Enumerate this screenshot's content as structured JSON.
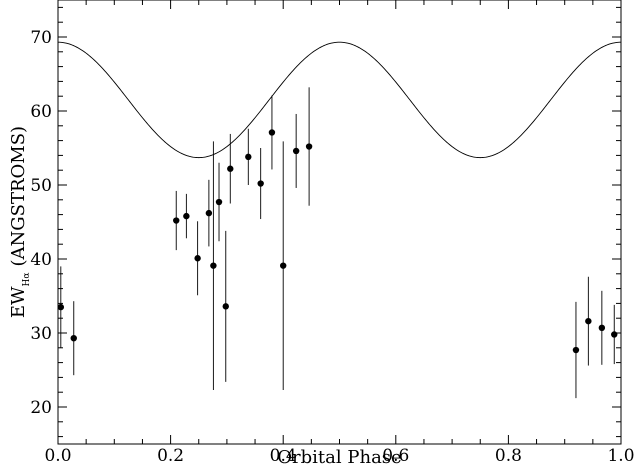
{
  "chart_data": {
    "type": "scatter",
    "xlabel": "Orbital Phase",
    "ylabel": {
      "main": "EW",
      "subscript": "Hα",
      "units": "(ANGSTROMS)"
    },
    "xlim": [
      0.0,
      1.0
    ],
    "ylim": [
      15,
      75
    ],
    "x_ticks": [
      0.0,
      0.2,
      0.4,
      0.6,
      0.8,
      1.0
    ],
    "x_tick_labels": [
      "0.0",
      "0.2",
      "0.4",
      "0.6",
      "0.8",
      "1.0"
    ],
    "y_ticks": [
      20,
      30,
      40,
      50,
      60,
      70
    ],
    "y_tick_labels": [
      "20",
      "30",
      "40",
      "50",
      "60",
      "70"
    ],
    "grid": false,
    "series": [
      {
        "type": "scatter",
        "x": [
          0.005,
          0.028,
          0.21,
          0.228,
          0.248,
          0.268,
          0.276,
          0.286,
          0.298,
          0.306,
          0.338,
          0.36,
          0.38,
          0.4,
          0.423,
          0.446,
          0.92,
          0.942,
          0.966,
          0.988
        ],
        "y": [
          33.5,
          29.3,
          45.2,
          45.8,
          40.1,
          46.2,
          39.1,
          47.7,
          33.6,
          52.2,
          53.8,
          50.2,
          57.1,
          39.1,
          54.6,
          55.2,
          27.7,
          31.6,
          30.7,
          29.8
        ],
        "yerr": [
          5.5,
          5.0,
          4.0,
          3.0,
          5.0,
          4.5,
          16.8,
          5.3,
          10.2,
          4.7,
          3.8,
          4.8,
          5.0,
          16.8,
          5.0,
          8.0,
          6.5,
          6.0,
          5.0,
          4.0
        ]
      },
      {
        "type": "line",
        "model": "cosine",
        "mean": 61.5,
        "amplitude": 7.8,
        "periods": 2
      }
    ]
  }
}
